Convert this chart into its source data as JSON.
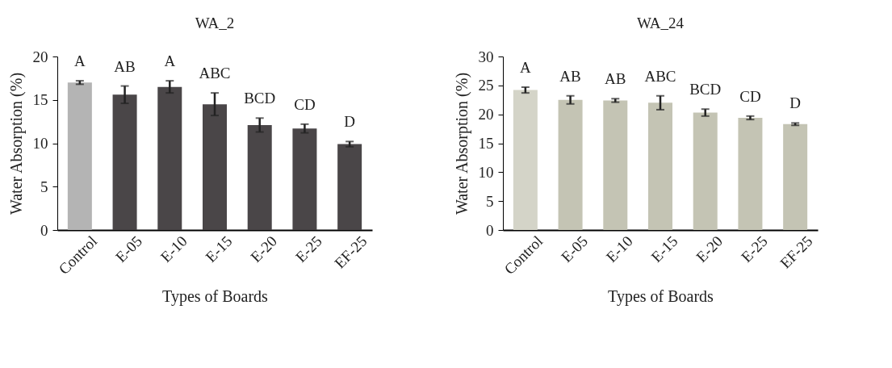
{
  "chart_data": [
    {
      "type": "bar",
      "title": "WA_2",
      "xlabel": "Types of Boards",
      "ylabel": "Water Absorption (%)",
      "categories": [
        "Control",
        "E-05",
        "E-10",
        "E-15",
        "E-20",
        "E-25",
        "EF-25"
      ],
      "values": [
        17.0,
        15.6,
        16.5,
        14.5,
        12.1,
        11.7,
        9.9
      ],
      "errors": [
        0.2,
        1.0,
        0.7,
        1.3,
        0.8,
        0.5,
        0.3
      ],
      "colors": [
        "#b4b4b4",
        "#4a4648",
        "#4a4648",
        "#4a4648",
        "#4a4648",
        "#4a4648",
        "#4a4648"
      ],
      "value_labels": [
        "A",
        "AB",
        "A",
        "ABC",
        "BCD",
        "CD",
        "D"
      ],
      "ylim": [
        0,
        20
      ],
      "yticks": [
        0,
        5,
        10,
        15,
        20
      ]
    },
    {
      "type": "bar",
      "title": "WA_24",
      "xlabel": "Types of Boards",
      "ylabel": "Water Absorption (%)",
      "categories": [
        "Control",
        "E-05",
        "E-10",
        "E-15",
        "E-20",
        "E-25",
        "EF-25"
      ],
      "values": [
        24.2,
        22.5,
        22.4,
        22.0,
        20.3,
        19.4,
        18.3
      ],
      "errors": [
        0.5,
        0.7,
        0.3,
        1.2,
        0.6,
        0.3,
        0.2
      ],
      "colors": [
        "#d4d4c8",
        "#c4c4b4",
        "#c4c4b4",
        "#c4c4b4",
        "#c4c4b4",
        "#c4c4b4",
        "#c4c4b4"
      ],
      "value_labels": [
        "A",
        "AB",
        "AB",
        "ABC",
        "BCD",
        "CD",
        "D"
      ],
      "ylim": [
        0,
        30
      ],
      "yticks": [
        0,
        5,
        10,
        15,
        20,
        25,
        30
      ]
    }
  ]
}
